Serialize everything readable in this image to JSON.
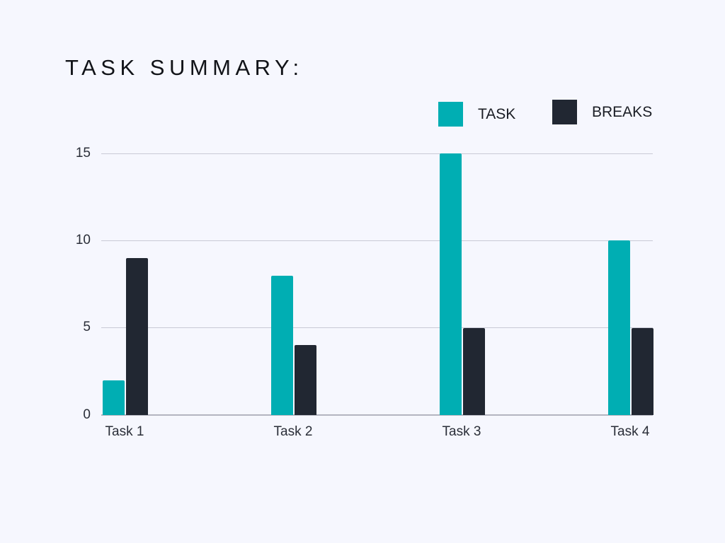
{
  "header": {
    "title": "TASK SUMMARY:"
  },
  "legend": [
    {
      "label": "TASK",
      "color": "#00aeb3"
    },
    {
      "label": "BREAKS",
      "color": "#212732"
    }
  ],
  "colors": {
    "background": "#f6f7fe",
    "task": "#00aeb3",
    "breaks": "#212732",
    "grid": "#c9cad6"
  },
  "y_axis": {
    "ticks": [
      "0",
      "5",
      "10",
      "15"
    ]
  },
  "x_axis": {
    "ticks": [
      "Task 1",
      "Task 2",
      "Task 3",
      "Task 4"
    ]
  },
  "chart_data": {
    "type": "bar",
    "title": "TASK SUMMARY:",
    "categories": [
      "Task 1",
      "Task 2",
      "Task 3",
      "Task 4"
    ],
    "series": [
      {
        "name": "TASK",
        "values": [
          2,
          8,
          15,
          10
        ],
        "color": "#00aeb3"
      },
      {
        "name": "BREAKS",
        "values": [
          9,
          4,
          5,
          5
        ],
        "color": "#212732"
      }
    ],
    "xlabel": "",
    "ylabel": "",
    "ylim": [
      0,
      15
    ],
    "yticks": [
      0,
      5,
      10,
      15
    ],
    "grid": true,
    "legend_position": "top-right"
  }
}
